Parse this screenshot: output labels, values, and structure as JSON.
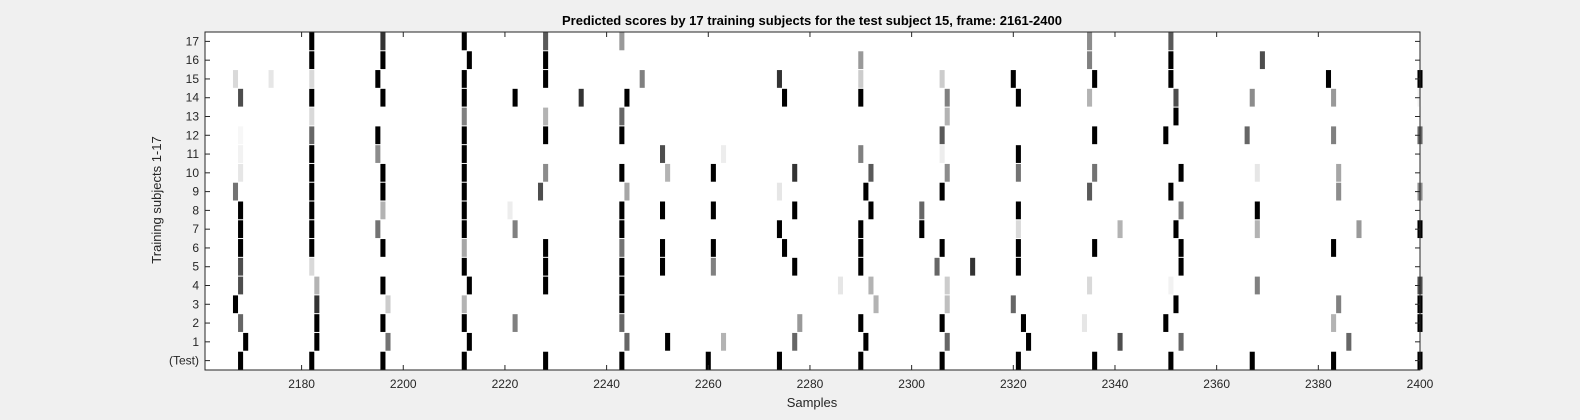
{
  "chart_data": {
    "type": "heatmap",
    "title": "Predicted scores by 17 training subjects for the test subject 15, frame: 2161-2400",
    "xlabel": "Samples",
    "ylabel": "Training subjects 1-17",
    "xlim": [
      2161,
      2400
    ],
    "xticks": [
      2180,
      2200,
      2220,
      2240,
      2260,
      2280,
      2300,
      2320,
      2340,
      2360,
      2380,
      2400
    ],
    "rows": [
      "(Test)",
      "1",
      "2",
      "3",
      "4",
      "5",
      "6",
      "7",
      "8",
      "9",
      "10",
      "11",
      "12",
      "13",
      "14",
      "15",
      "16",
      "17"
    ],
    "colormap": "gray (0 = black, 1 = white)",
    "grid": false,
    "cells": [
      {
        "row": "(Test)",
        "marks": [
          [
            2168,
            0
          ],
          [
            2182,
            0
          ],
          [
            2196,
            0
          ],
          [
            2212,
            0
          ],
          [
            2228,
            0
          ],
          [
            2243,
            0
          ],
          [
            2260,
            0
          ],
          [
            2274,
            0
          ],
          [
            2290,
            0
          ],
          [
            2306,
            0
          ],
          [
            2321,
            0
          ],
          [
            2336,
            0
          ],
          [
            2351,
            0
          ],
          [
            2367,
            0
          ],
          [
            2383,
            0
          ],
          [
            2400,
            0
          ]
        ]
      },
      {
        "row": "1",
        "marks": [
          [
            2169,
            0
          ],
          [
            2183,
            0
          ],
          [
            2197,
            0.45
          ],
          [
            2213,
            0
          ],
          [
            2244,
            0.4
          ],
          [
            2252,
            0
          ],
          [
            2263,
            0.7
          ],
          [
            2277,
            0.4
          ],
          [
            2291,
            0
          ],
          [
            2307,
            0.4
          ],
          [
            2323,
            0
          ],
          [
            2341,
            0.3
          ],
          [
            2353,
            0.4
          ],
          [
            2386,
            0.4
          ]
        ]
      },
      {
        "row": "2",
        "marks": [
          [
            2168,
            0.4
          ],
          [
            2183,
            0
          ],
          [
            2196,
            0
          ],
          [
            2212,
            0
          ],
          [
            2222,
            0.5
          ],
          [
            2243,
            0.4
          ],
          [
            2278,
            0.6
          ],
          [
            2290,
            0
          ],
          [
            2306,
            0
          ],
          [
            2322,
            0
          ],
          [
            2334,
            0.9
          ],
          [
            2350,
            0
          ],
          [
            2383,
            0.7
          ],
          [
            2400,
            0
          ]
        ]
      },
      {
        "row": "3",
        "marks": [
          [
            2167,
            0
          ],
          [
            2183,
            0.2
          ],
          [
            2197,
            0.8
          ],
          [
            2212,
            0.7
          ],
          [
            2243,
            0
          ],
          [
            2293,
            0.7
          ],
          [
            2307,
            0.75
          ],
          [
            2320,
            0.4
          ],
          [
            2352,
            0
          ],
          [
            2384,
            0.5
          ],
          [
            2400,
            0
          ]
        ]
      },
      {
        "row": "4",
        "marks": [
          [
            2168,
            0.3
          ],
          [
            2183,
            0.7
          ],
          [
            2196,
            0
          ],
          [
            2213,
            0
          ],
          [
            2228,
            0
          ],
          [
            2243,
            0
          ],
          [
            2286,
            0.9
          ],
          [
            2292,
            0.7
          ],
          [
            2307,
            0.8
          ],
          [
            2335,
            0.85
          ],
          [
            2351,
            0.95
          ],
          [
            2368,
            0.5
          ],
          [
            2400,
            0.3
          ]
        ]
      },
      {
        "row": "5",
        "marks": [
          [
            2168,
            0.3
          ],
          [
            2182,
            0.85
          ],
          [
            2212,
            0
          ],
          [
            2228,
            0
          ],
          [
            2243,
            0
          ],
          [
            2251,
            0
          ],
          [
            2261,
            0.5
          ],
          [
            2277,
            0
          ],
          [
            2290,
            0
          ],
          [
            2305,
            0.4
          ],
          [
            2312,
            0.2
          ],
          [
            2321,
            0
          ],
          [
            2353,
            0
          ]
        ]
      },
      {
        "row": "6",
        "marks": [
          [
            2168,
            0
          ],
          [
            2182,
            0
          ],
          [
            2196,
            0
          ],
          [
            2212,
            0.65
          ],
          [
            2228,
            0
          ],
          [
            2243,
            0.45
          ],
          [
            2251,
            0
          ],
          [
            2261,
            0
          ],
          [
            2275,
            0
          ],
          [
            2290,
            0
          ],
          [
            2306,
            0
          ],
          [
            2321,
            0
          ],
          [
            2336,
            0
          ],
          [
            2353,
            0
          ],
          [
            2383,
            0
          ]
        ]
      },
      {
        "row": "7",
        "marks": [
          [
            2168,
            0
          ],
          [
            2182,
            0
          ],
          [
            2195,
            0.45
          ],
          [
            2212,
            0
          ],
          [
            2222,
            0.5
          ],
          [
            2243,
            0
          ],
          [
            2274,
            0
          ],
          [
            2290,
            0
          ],
          [
            2302,
            0
          ],
          [
            2321,
            0.85
          ],
          [
            2341,
            0.7
          ],
          [
            2352,
            0
          ],
          [
            2368,
            0.7
          ],
          [
            2388,
            0.6
          ],
          [
            2400,
            0
          ]
        ]
      },
      {
        "row": "8",
        "marks": [
          [
            2168,
            0
          ],
          [
            2182,
            0
          ],
          [
            2196,
            0.7
          ],
          [
            2212,
            0
          ],
          [
            2221,
            0.93
          ],
          [
            2243,
            0
          ],
          [
            2251,
            0
          ],
          [
            2261,
            0
          ],
          [
            2277,
            0
          ],
          [
            2292,
            0
          ],
          [
            2302,
            0.4
          ],
          [
            2321,
            0
          ],
          [
            2353,
            0.5
          ],
          [
            2368,
            0
          ]
        ]
      },
      {
        "row": "9",
        "marks": [
          [
            2167,
            0.45
          ],
          [
            2182,
            0
          ],
          [
            2196,
            0
          ],
          [
            2212,
            0
          ],
          [
            2227,
            0.3
          ],
          [
            2244,
            0.65
          ],
          [
            2274,
            0.9
          ],
          [
            2291,
            0
          ],
          [
            2306,
            0
          ],
          [
            2335,
            0.35
          ],
          [
            2351,
            0
          ],
          [
            2384,
            0.55
          ],
          [
            2400,
            0.55
          ]
        ]
      },
      {
        "row": "10",
        "marks": [
          [
            2168,
            0.9
          ],
          [
            2182,
            0
          ],
          [
            2196,
            0
          ],
          [
            2212,
            0
          ],
          [
            2228,
            0.55
          ],
          [
            2243,
            0
          ],
          [
            2252,
            0.7
          ],
          [
            2261,
            0
          ],
          [
            2277,
            0.2
          ],
          [
            2292,
            0.35
          ],
          [
            2307,
            0.55
          ],
          [
            2321,
            0.45
          ],
          [
            2336,
            0.45
          ],
          [
            2353,
            0
          ],
          [
            2368,
            0.9
          ],
          [
            2384,
            0.65
          ]
        ]
      },
      {
        "row": "11",
        "marks": [
          [
            2168,
            0.95
          ],
          [
            2182,
            0
          ],
          [
            2195,
            0.55
          ],
          [
            2212,
            0
          ],
          [
            2251,
            0.3
          ],
          [
            2263,
            0.93
          ],
          [
            2290,
            0.5
          ],
          [
            2306,
            0.93
          ],
          [
            2321,
            0
          ]
        ]
      },
      {
        "row": "12",
        "marks": [
          [
            2168,
            0.97
          ],
          [
            2182,
            0.4
          ],
          [
            2195,
            0
          ],
          [
            2212,
            0
          ],
          [
            2228,
            0
          ],
          [
            2243,
            0
          ],
          [
            2306,
            0.35
          ],
          [
            2336,
            0
          ],
          [
            2350,
            0
          ],
          [
            2366,
            0.4
          ],
          [
            2383,
            0.5
          ],
          [
            2400,
            0.4
          ]
        ]
      },
      {
        "row": "13",
        "marks": [
          [
            2182,
            0.85
          ],
          [
            2212,
            0.5
          ],
          [
            2228,
            0.7
          ],
          [
            2243,
            0.4
          ],
          [
            2307,
            0.7
          ],
          [
            2352,
            0
          ]
        ]
      },
      {
        "row": "14",
        "marks": [
          [
            2168,
            0.3
          ],
          [
            2182,
            0
          ],
          [
            2196,
            0
          ],
          [
            2212,
            0
          ],
          [
            2222,
            0
          ],
          [
            2235,
            0.2
          ],
          [
            2244,
            0
          ],
          [
            2275,
            0
          ],
          [
            2290,
            0
          ],
          [
            2307,
            0.5
          ],
          [
            2321,
            0
          ],
          [
            2335,
            0.7
          ],
          [
            2352,
            0.3
          ],
          [
            2367,
            0.55
          ],
          [
            2383,
            0.6
          ],
          [
            2400,
            0.95
          ]
        ]
      },
      {
        "row": "15",
        "marks": [
          [
            2167,
            0.85
          ],
          [
            2174,
            0.9
          ],
          [
            2182,
            0.85
          ],
          [
            2195,
            0
          ],
          [
            2212,
            0
          ],
          [
            2228,
            0
          ],
          [
            2247,
            0.5
          ],
          [
            2274,
            0.2
          ],
          [
            2290,
            0.8
          ],
          [
            2306,
            0.8
          ],
          [
            2320,
            0
          ],
          [
            2336,
            0
          ],
          [
            2351,
            0
          ],
          [
            2382,
            0
          ],
          [
            2400,
            0
          ]
        ]
      },
      {
        "row": "16",
        "marks": [
          [
            2182,
            0
          ],
          [
            2196,
            0
          ],
          [
            2213,
            0
          ],
          [
            2228,
            0
          ],
          [
            2290,
            0.6
          ],
          [
            2335,
            0.5
          ],
          [
            2351,
            0
          ],
          [
            2369,
            0.3
          ]
        ]
      },
      {
        "row": "17",
        "marks": [
          [
            2182,
            0
          ],
          [
            2196,
            0.2
          ],
          [
            2212,
            0
          ],
          [
            2228,
            0.35
          ],
          [
            2243,
            0.6
          ],
          [
            2335,
            0.55
          ],
          [
            2351,
            0.35
          ]
        ]
      }
    ]
  }
}
